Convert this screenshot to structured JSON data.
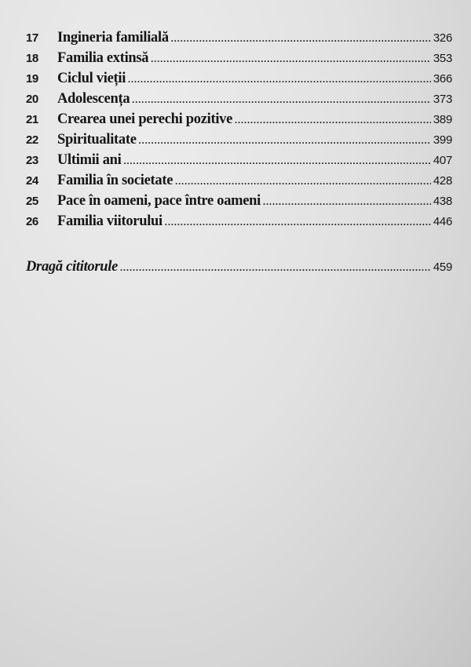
{
  "chapters": [
    {
      "number": "17",
      "title": "Ingineria familială",
      "page": "326"
    },
    {
      "number": "18",
      "title": "Familia extinsă",
      "page": "353"
    },
    {
      "number": "19",
      "title": "Ciclul vieții",
      "page": "366"
    },
    {
      "number": "20",
      "title": "Adolescența",
      "page": "373"
    },
    {
      "number": "21",
      "title": "Crearea unei perechi pozitive",
      "page": "389"
    },
    {
      "number": "22",
      "title": "Spiritualitate",
      "page": "399"
    },
    {
      "number": "23",
      "title": "Ultimii ani",
      "page": "407"
    },
    {
      "number": "24",
      "title": "Familia în societate",
      "page": "428"
    },
    {
      "number": "25",
      "title": "Pace în oameni, pace între oameni",
      "page": "438"
    },
    {
      "number": "26",
      "title": "Familia viitorului",
      "page": "446"
    }
  ],
  "epilogue": {
    "title": "Dragă cititorule",
    "page": "459"
  }
}
